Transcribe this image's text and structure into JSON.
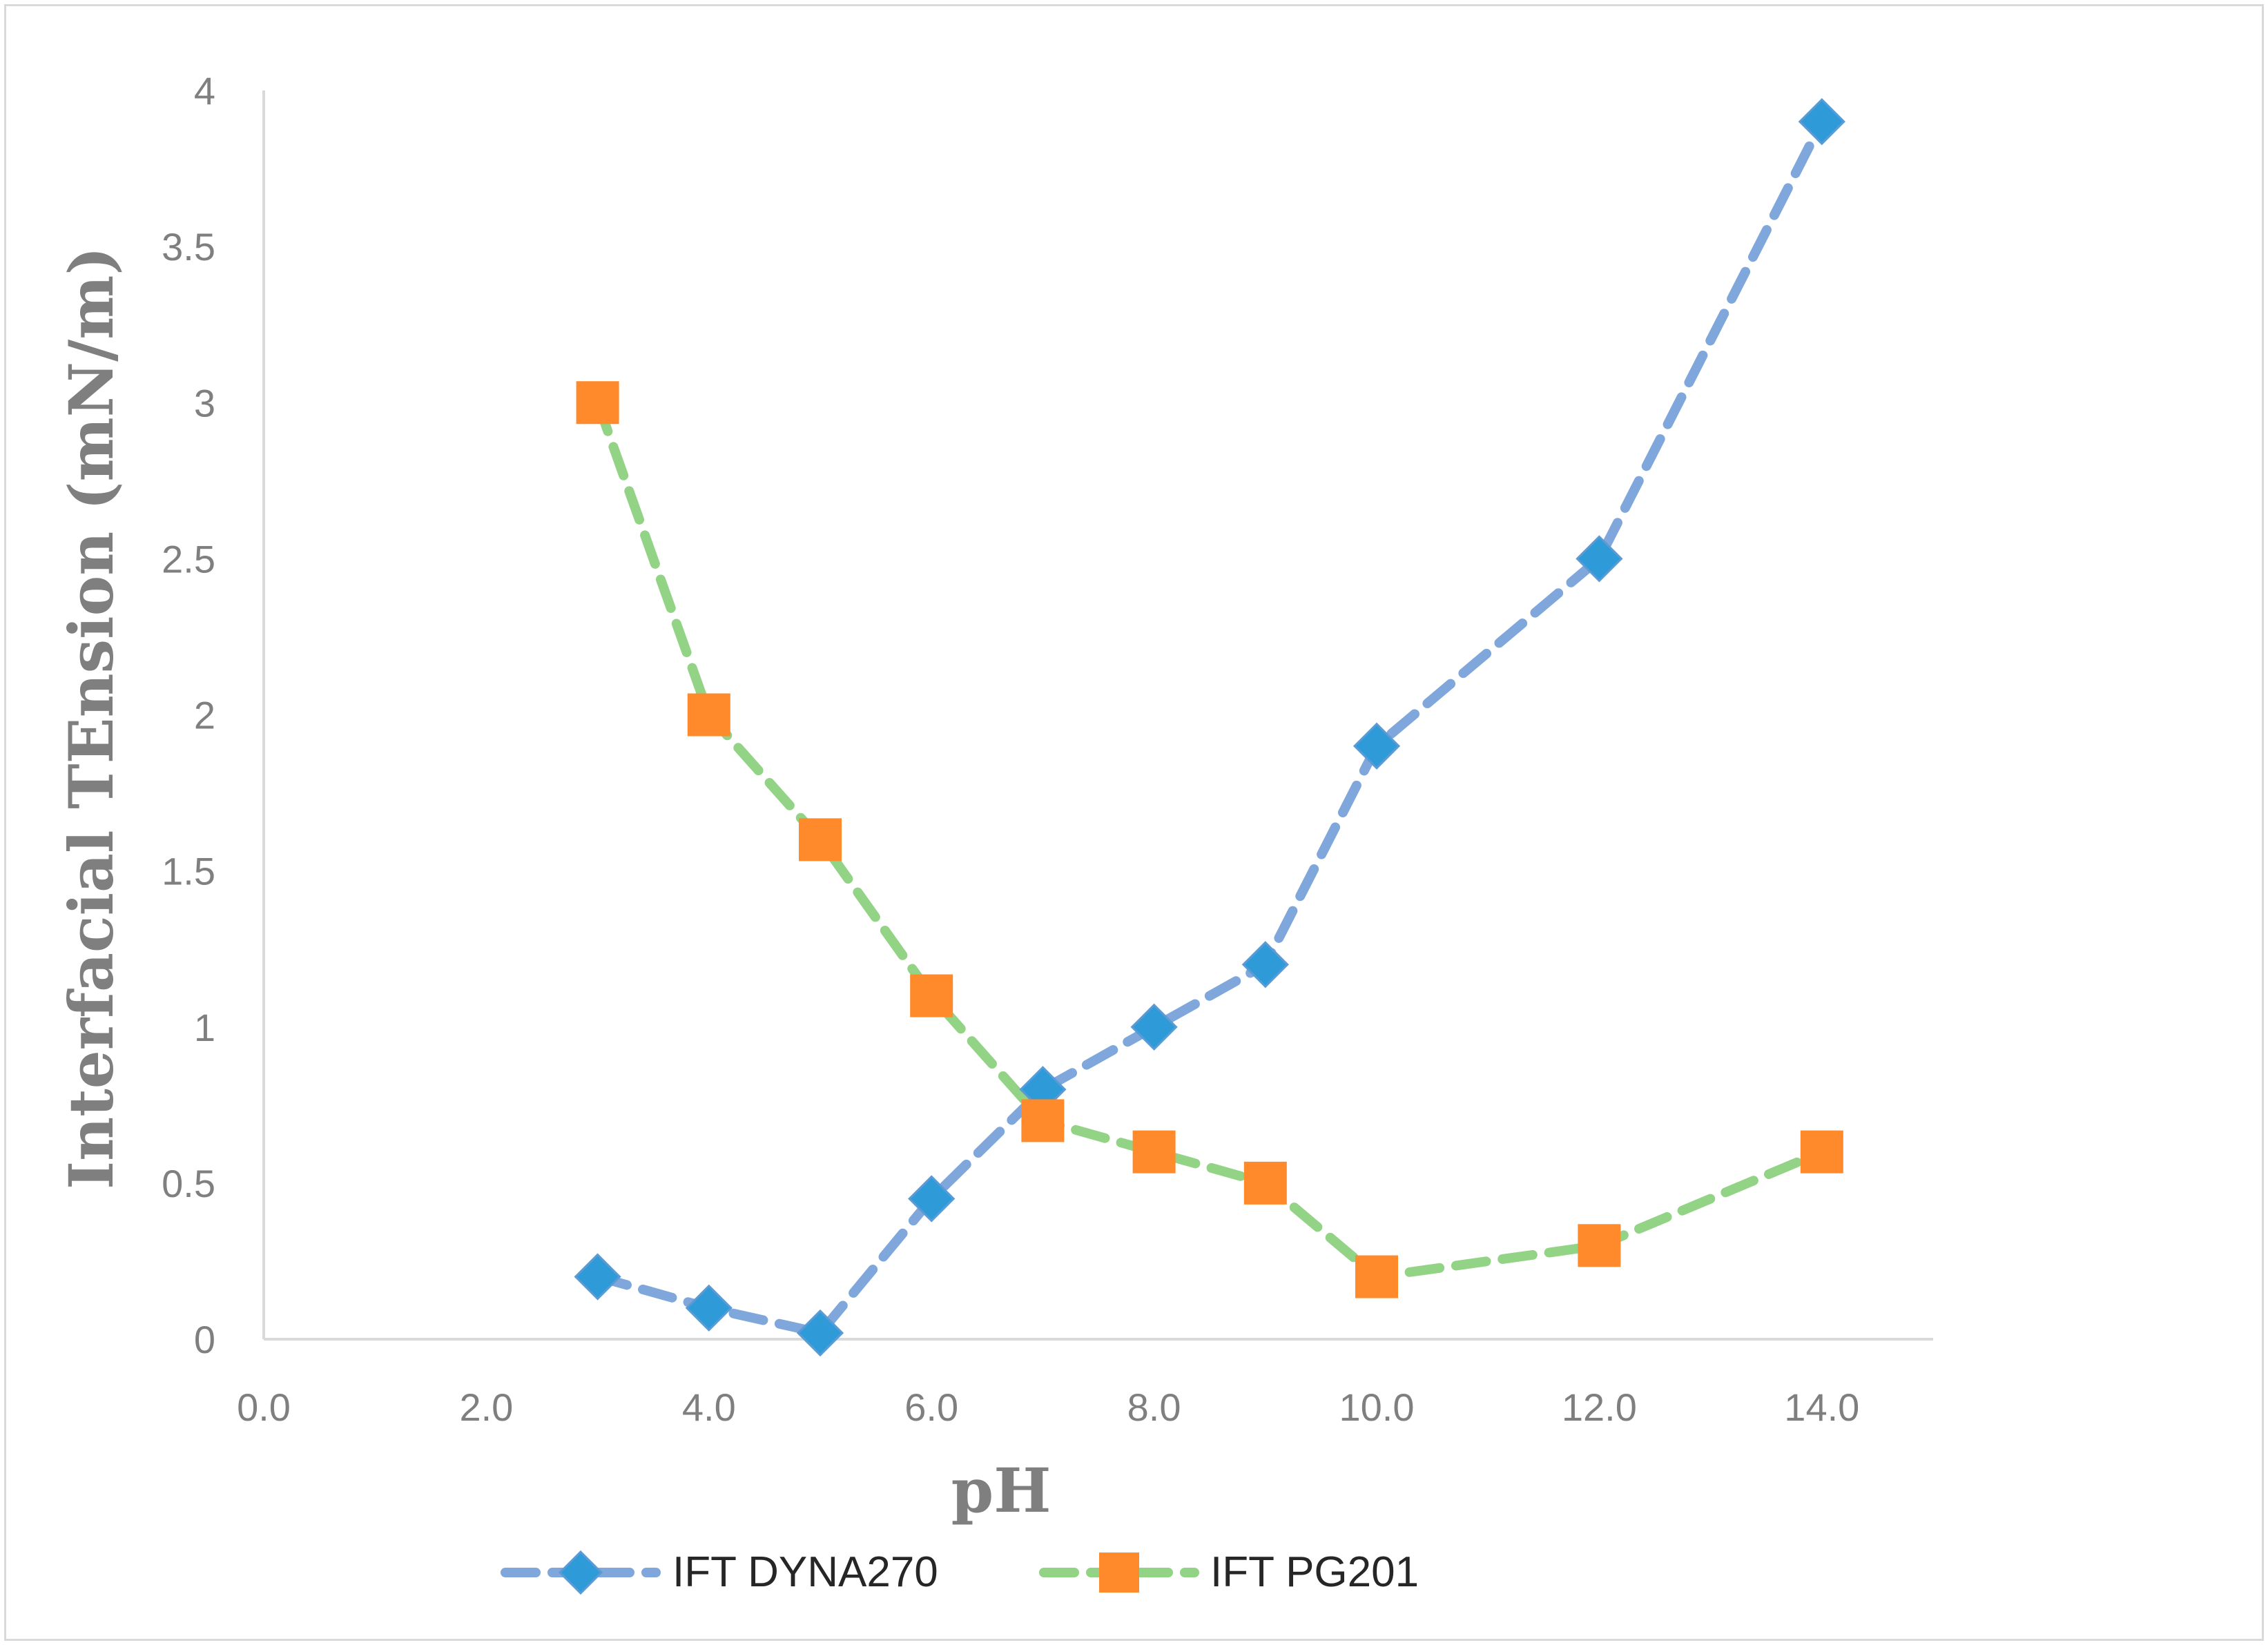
{
  "chart_data": {
    "type": "line",
    "title": "",
    "xlabel": "pH",
    "ylabel": "Interfacial TEnsion (mN/m)",
    "xlim": [
      0,
      15
    ],
    "ylim": [
      0,
      4
    ],
    "x_ticks": [
      "0.0",
      "2.0",
      "4.0",
      "6.0",
      "8.0",
      "10.0",
      "12.0",
      "14.0"
    ],
    "x_tick_values": [
      0,
      2,
      4,
      6,
      8,
      10,
      12,
      14
    ],
    "y_ticks": [
      "0",
      "0.5",
      "1",
      "1.5",
      "2",
      "2.5",
      "3",
      "3.5",
      "4"
    ],
    "y_tick_values": [
      0,
      0.5,
      1,
      1.5,
      2,
      2.5,
      3,
      3.5,
      4
    ],
    "grid": false,
    "legend_position": "bottom",
    "series": [
      {
        "name": "IFT DYNA270",
        "line_color": "#7fa7dc",
        "marker": "diamond",
        "marker_color": "#2e9bd8",
        "x": [
          3,
          4,
          5,
          6,
          7,
          8,
          9,
          10,
          12,
          14
        ],
        "y": [
          0.2,
          0.1,
          0.02,
          0.45,
          0.8,
          1.0,
          1.2,
          1.9,
          2.5,
          3.9
        ]
      },
      {
        "name": "IFT PG201",
        "line_color": "#92d386",
        "marker": "square",
        "marker_color": "#ff8a2b",
        "x": [
          3,
          4,
          5,
          6,
          7,
          8,
          9,
          10,
          12,
          14
        ],
        "y": [
          3.0,
          2.0,
          1.6,
          1.1,
          0.7,
          0.6,
          0.5,
          0.2,
          0.3,
          0.6
        ]
      }
    ]
  }
}
